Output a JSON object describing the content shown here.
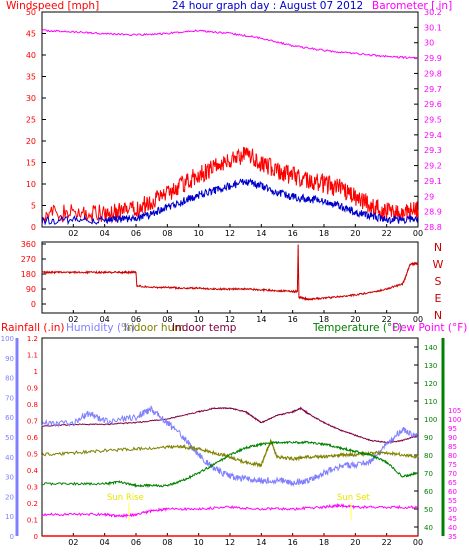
{
  "header": {
    "title": "24 hour graph day : August 07 2012",
    "left_label": "Windspeed [mph]",
    "right_label": "Barometer [.in]"
  },
  "colors": {
    "frame": "#000000",
    "wind": "#ff0000",
    "gust": "#ff0000",
    "avgwind": "#0000cc",
    "barometer": "#ff00ff",
    "title": "#0000cc",
    "direction": "#cc0000",
    "rain": "#ff0000",
    "humidity": "#8080ff",
    "indoor_hum": "#808000",
    "indoor_temp": "#800040",
    "temperature": "#008000",
    "dewpoint": "#ff00ff",
    "sun": "#ffff00"
  },
  "legend_bottom": {
    "rainfall": "Rainfall (.in)",
    "humidity": "Humidity (%)",
    "indoor_hum": "Indoor hum",
    "indoor_temp": "Indoor temp",
    "temperature": "Temperature (°F)",
    "dewpoint": "Dew Point (°F)"
  },
  "sun": {
    "rise": "Sun Rise",
    "set": "Sun Set"
  },
  "chart_data": [
    {
      "type": "line",
      "name": "wind_barometer",
      "x_ticks": [
        "02",
        "04",
        "06",
        "08",
        "10",
        "12",
        "14",
        "16",
        "18",
        "20",
        "22",
        "00"
      ],
      "y_left_ticks": [
        "0",
        "5",
        "10",
        "15",
        "20",
        "25",
        "30",
        "35",
        "40",
        "45",
        "50"
      ],
      "y_right_ticks": [
        "28.8",
        "28.9",
        "29",
        "29.1",
        "29.2",
        "29.3",
        "29.4",
        "29.5",
        "29.6",
        "29.7",
        "29.8",
        "29.9",
        "30",
        "30.1",
        "30.2"
      ],
      "ylim_left": [
        0,
        50
      ],
      "ylim_right": [
        28.8,
        30.2
      ],
      "series": [
        {
          "name": "Barometer",
          "color": "barometer",
          "axis": "right",
          "x": [
            0,
            2,
            4,
            6,
            8,
            10,
            12,
            14,
            16,
            18,
            20,
            22,
            24
          ],
          "values": [
            30.08,
            30.07,
            30.06,
            30.05,
            30.06,
            30.08,
            30.06,
            30.03,
            29.98,
            29.95,
            29.93,
            29.91,
            29.9
          ]
        },
        {
          "name": "Gust",
          "color": "gust",
          "axis": "left",
          "x": [
            0,
            2,
            4,
            5,
            6,
            7,
            8,
            9,
            10,
            11,
            12,
            13,
            14,
            15,
            16,
            17,
            18,
            19,
            20,
            21,
            22,
            23,
            24
          ],
          "values": [
            3.0,
            3.2,
            3.0,
            3.5,
            4.0,
            6.0,
            8.0,
            10.0,
            12.0,
            14.0,
            15.5,
            17.0,
            15.0,
            13.0,
            12.0,
            11.0,
            10.0,
            9.0,
            7.0,
            5.0,
            3.5,
            3.0,
            4.0
          ]
        },
        {
          "name": "Wind",
          "color": "avgwind",
          "axis": "left",
          "x": [
            0,
            2,
            4,
            5,
            6,
            7,
            8,
            9,
            10,
            11,
            12,
            13,
            14,
            15,
            16,
            17,
            18,
            19,
            20,
            21,
            22,
            23,
            24
          ],
          "values": [
            1.5,
            1.6,
            1.5,
            1.8,
            2.0,
            3.0,
            4.5,
            6.0,
            7.5,
            8.5,
            9.5,
            10.5,
            9.5,
            8.0,
            7.0,
            6.5,
            6.0,
            5.0,
            3.5,
            2.5,
            1.8,
            1.6,
            2.0
          ]
        }
      ]
    },
    {
      "type": "line",
      "name": "wind_direction",
      "x_ticks": [
        "02",
        "04",
        "06",
        "08",
        "10",
        "12",
        "14",
        "16",
        "18",
        "20",
        "22",
        "00"
      ],
      "y_left_ticks": [
        "0",
        "90",
        "180",
        "270",
        "360"
      ],
      "y_right_ticks": [
        "N",
        "E",
        "S",
        "W",
        "N"
      ],
      "ylim": [
        0,
        360
      ],
      "series": [
        {
          "name": "Direction",
          "color": "direction",
          "x": [
            0,
            1,
            2,
            3,
            4,
            5,
            5.5,
            6.0,
            6.05,
            7,
            8,
            9,
            10,
            11,
            12,
            13,
            14,
            15,
            16,
            16.3,
            16.35,
            16.4,
            17,
            18,
            19,
            20,
            21,
            22,
            23,
            23.2,
            23.5,
            24
          ],
          "values": [
            190,
            190,
            190,
            190,
            190,
            190,
            190,
            190,
            110,
            100,
            100,
            95,
            95,
            90,
            90,
            90,
            85,
            80,
            75,
            75,
            360,
            40,
            30,
            35,
            45,
            55,
            70,
            90,
            120,
            160,
            240,
            245
          ]
        }
      ]
    },
    {
      "type": "line",
      "name": "temperature_humidity_rain",
      "x_ticks": [
        "02",
        "04",
        "06",
        "08",
        "10",
        "12",
        "14",
        "16",
        "18",
        "20",
        "22",
        "00"
      ],
      "y_rain_ticks": [
        "0",
        "0.1",
        "0.2",
        "0.3",
        "0.4",
        "0.5",
        "0.6",
        "0.7",
        "0.8",
        "0.9",
        "1",
        "1.1",
        "1.2"
      ],
      "y_hum_ticks": [
        "0",
        "10",
        "20",
        "30",
        "40",
        "50",
        "60",
        "70",
        "80",
        "90",
        "100"
      ],
      "y_temp_ticks": [
        "40",
        "50",
        "60",
        "70",
        "80",
        "90",
        "100",
        "110",
        "120",
        "130",
        "140"
      ],
      "y_dew_ticks": [
        "35",
        "40",
        "45",
        "50",
        "55",
        "60",
        "65",
        "70",
        "75",
        "80",
        "85",
        "90",
        "95",
        "100",
        "105"
      ],
      "ylim_temp": [
        35,
        145
      ],
      "ylim_hum": [
        0,
        100
      ],
      "series": [
        {
          "name": "Indoor temp",
          "color": "indoor_temp",
          "axis": "temp",
          "x": [
            0,
            2,
            4,
            6,
            8,
            10,
            11,
            12,
            13,
            13.5,
            14,
            15,
            16,
            16.5,
            17,
            18,
            19,
            20,
            21,
            22,
            23,
            24
          ],
          "values": [
            96,
            97,
            97,
            98,
            100,
            104,
            106,
            106,
            104,
            101,
            98,
            102,
            104,
            106,
            103,
            98,
            94,
            91,
            88,
            87,
            88,
            91
          ]
        },
        {
          "name": "Humidity",
          "color": "humidity",
          "axis": "hum",
          "x": [
            0,
            2,
            3,
            4,
            6,
            7,
            8,
            9,
            10,
            11,
            12,
            13,
            14,
            15,
            16,
            17,
            18,
            19,
            20,
            21,
            22,
            23,
            24
          ],
          "values": [
            57,
            57,
            62,
            58,
            60,
            64,
            57,
            50,
            41,
            34,
            30,
            29,
            28,
            28,
            27,
            28,
            32,
            35,
            36,
            38,
            46,
            54,
            50
          ]
        },
        {
          "name": "Indoor hum",
          "color": "indoor_hum",
          "axis": "hum",
          "x": [
            0,
            2,
            4,
            6,
            8,
            9,
            10,
            11,
            12,
            13,
            14,
            14.3,
            14.6,
            15,
            16,
            17,
            18,
            19,
            20,
            21,
            22,
            23,
            24
          ],
          "values": [
            41,
            42,
            43,
            44,
            45,
            45,
            44,
            42,
            40,
            37,
            36,
            42,
            48,
            40,
            39,
            40,
            40,
            41,
            41,
            42,
            42,
            41,
            40
          ]
        },
        {
          "name": "Temperature",
          "color": "temperature",
          "axis": "temp",
          "x": [
            0,
            2,
            4,
            5,
            6,
            7,
            8,
            9,
            10,
            11,
            12,
            13,
            14,
            15,
            16,
            17,
            18,
            19,
            20,
            21,
            22,
            23,
            24
          ],
          "values": [
            64,
            64,
            64,
            65,
            63,
            63,
            63,
            66,
            70,
            75,
            80,
            84,
            86,
            87,
            87,
            87,
            86,
            84,
            82,
            80,
            76,
            68,
            70
          ]
        },
        {
          "name": "Dew Point",
          "color": "dewpoint",
          "axis": "dew",
          "x": [
            0,
            2,
            4,
            5,
            6,
            7,
            8,
            10,
            12,
            14,
            16,
            18,
            19,
            20,
            22,
            24
          ],
          "values": [
            47,
            47,
            47,
            46,
            47,
            49,
            50,
            50,
            51,
            50,
            50,
            51,
            52,
            51,
            51,
            51
          ]
        },
        {
          "name": "Rainfall",
          "color": "rain",
          "axis": "hum",
          "x": [
            0,
            24
          ],
          "values": [
            0,
            0
          ]
        }
      ]
    }
  ]
}
